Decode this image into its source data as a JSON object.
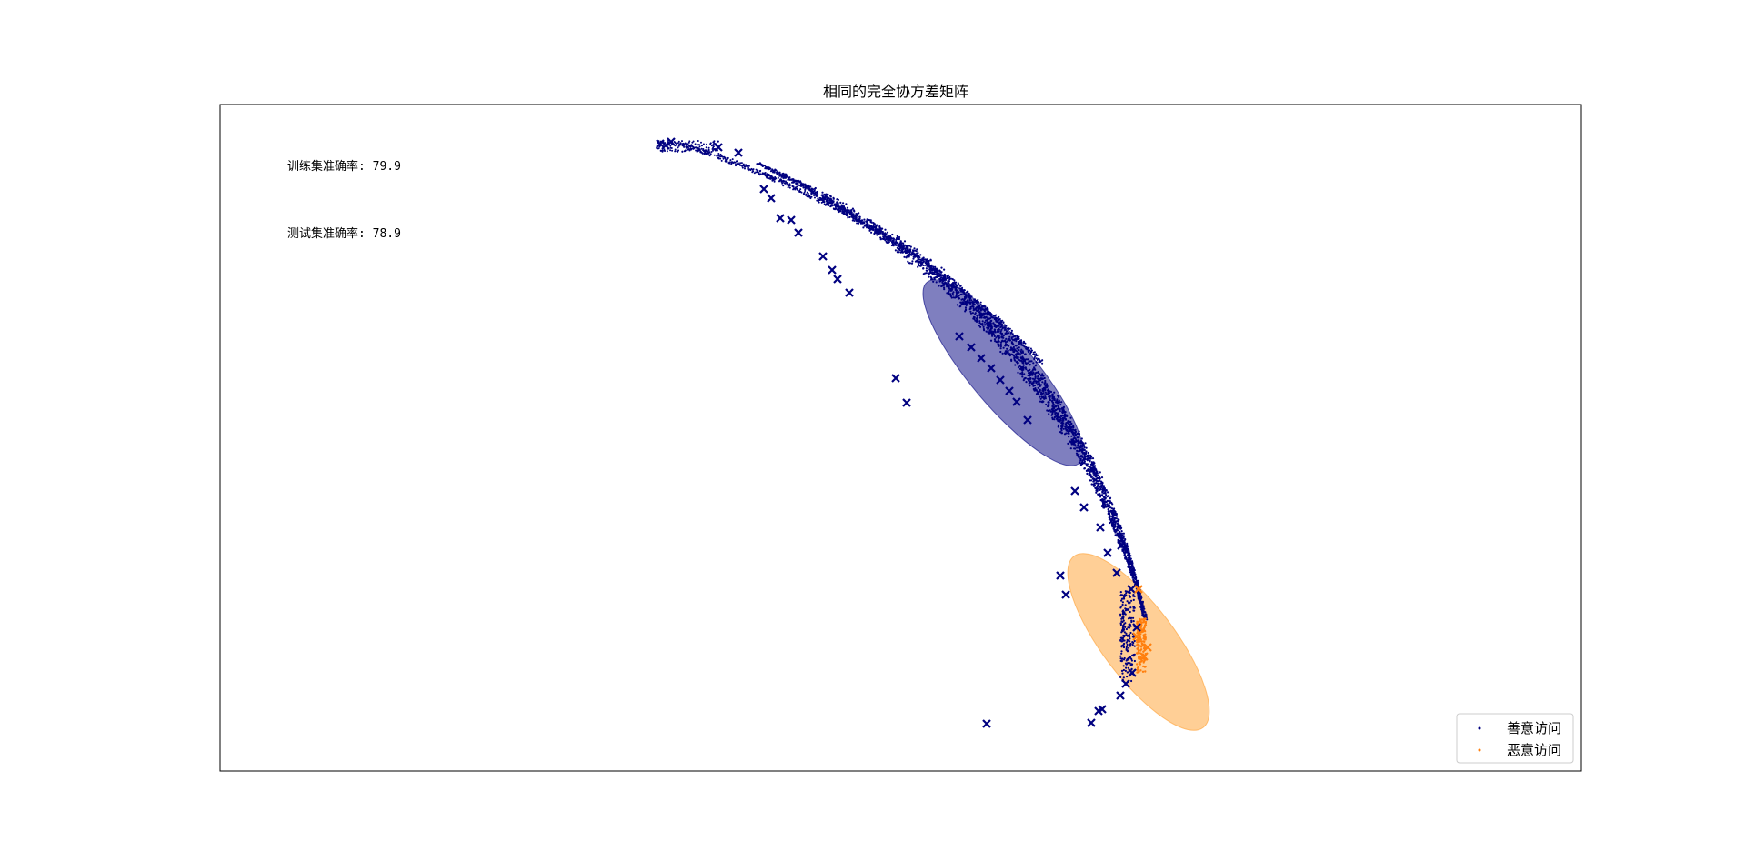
{
  "chart_data": {
    "type": "scatter",
    "title": "相同的完全协方差矩阵",
    "xlabel": "",
    "ylabel": "",
    "xticks": [],
    "yticks": [],
    "grid": false,
    "legend_position": "lower-right",
    "annotations": [
      "训练集准确率: 79.9",
      "测试集准确率: 78.9"
    ],
    "series": [
      {
        "name": "善意访问",
        "color": "#000080",
        "marker": "dot"
      },
      {
        "name": "恶意访问",
        "color": "#ff7f0e",
        "marker": "dot"
      }
    ],
    "misclassified_marker": "x",
    "covariance_ellipses": [
      {
        "series": "善意访问",
        "color": "#000080",
        "alpha": 0.5
      },
      {
        "series": "恶意访问",
        "color": "#ff9f2e",
        "alpha": 0.5
      }
    ]
  }
}
